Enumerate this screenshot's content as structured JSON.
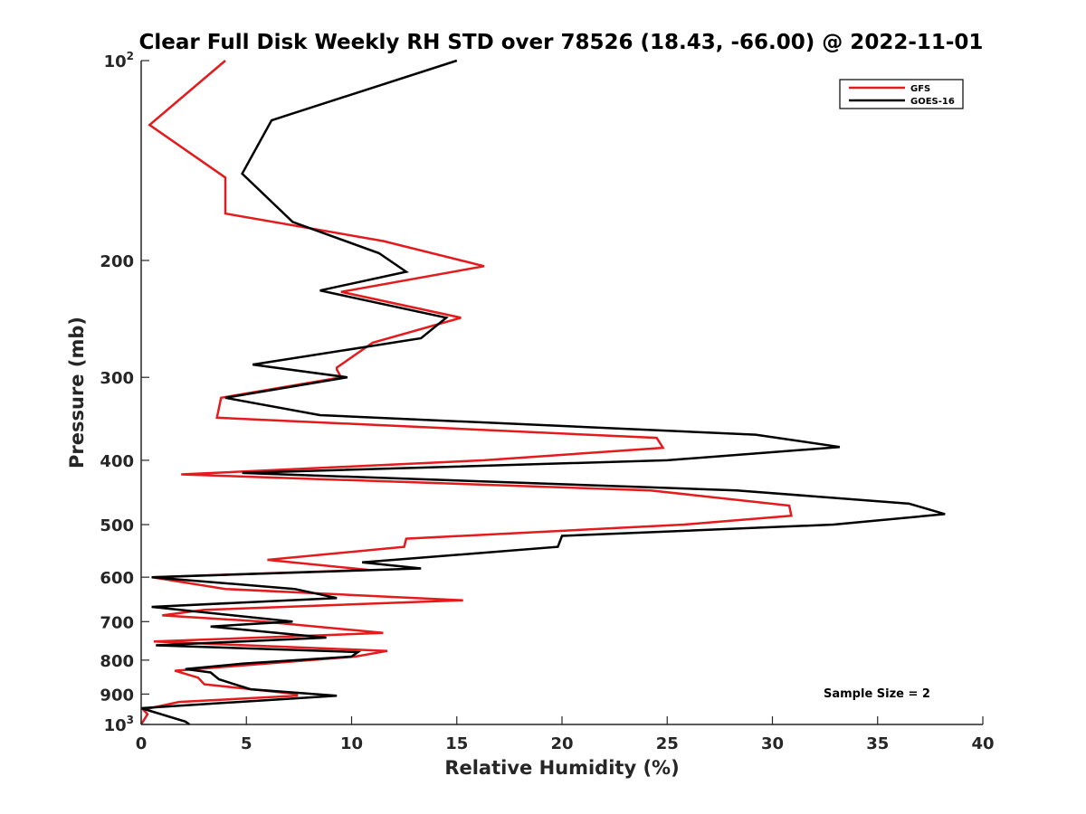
{
  "chart_data": {
    "type": "line",
    "title": "Clear Full Disk Weekly RH STD over 78526 (18.43, -66.00) @ 2022-11-01",
    "xlabel": "Relative Humidity (%)",
    "ylabel": "Pressure (mb)",
    "xlim": [
      0,
      40
    ],
    "ylim": [
      100,
      1000
    ],
    "yscale": "log",
    "y_reversed": true,
    "x_ticks": [
      0,
      5,
      10,
      15,
      20,
      25,
      30,
      35,
      40
    ],
    "x_tick_labels": [
      "0",
      "5",
      "10",
      "15",
      "20",
      "25",
      "30",
      "35",
      "40"
    ],
    "y_ticks": [
      {
        "value": 100,
        "base": "10",
        "exp": "2"
      },
      {
        "value": 200,
        "label": "200"
      },
      {
        "value": 300,
        "label": "300"
      },
      {
        "value": 400,
        "label": "400"
      },
      {
        "value": 500,
        "label": "500"
      },
      {
        "value": 600,
        "label": "600"
      },
      {
        "value": 700,
        "label": "700"
      },
      {
        "value": 800,
        "label": "800"
      },
      {
        "value": 900,
        "label": "900"
      },
      {
        "value": 1000,
        "base": "10",
        "exp": "3"
      }
    ],
    "grid": false,
    "legend_position": "top-right",
    "annotation": "Sample Size = 2",
    "series": [
      {
        "name": "GFS",
        "color": "#e41a1c",
        "points": [
          [
            4.0,
            100
          ],
          [
            0.4,
            125
          ],
          [
            4.0,
            150
          ],
          [
            4.0,
            170
          ],
          [
            11.5,
            187
          ],
          [
            16.3,
            204
          ],
          [
            9.5,
            223
          ],
          [
            15.2,
            244
          ],
          [
            11.0,
            266
          ],
          [
            9.3,
            290
          ],
          [
            9.3,
            292
          ],
          [
            9.5,
            300
          ],
          [
            3.8,
            322
          ],
          [
            3.6,
            345
          ],
          [
            24.5,
            370
          ],
          [
            24.8,
            383
          ],
          [
            16.3,
            400
          ],
          [
            1.9,
            420
          ],
          [
            24.2,
            444
          ],
          [
            30.8,
            468
          ],
          [
            30.9,
            485
          ],
          [
            25.8,
            500
          ],
          [
            12.6,
            525
          ],
          [
            12.5,
            540
          ],
          [
            6.0,
            565
          ],
          [
            10.8,
            585
          ],
          [
            0.5,
            600
          ],
          [
            4.0,
            625
          ],
          [
            15.3,
            650
          ],
          [
            3.0,
            672
          ],
          [
            1.0,
            685
          ],
          [
            5.8,
            700
          ],
          [
            11.5,
            728
          ],
          [
            0.6,
            750
          ],
          [
            11.7,
            775
          ],
          [
            10.2,
            790
          ],
          [
            1.6,
            830
          ],
          [
            2.7,
            850
          ],
          [
            3.0,
            870
          ],
          [
            7.4,
            900
          ],
          [
            7.4,
            905
          ],
          [
            1.8,
            925
          ],
          [
            0.1,
            950
          ],
          [
            0.3,
            965
          ],
          [
            0.0,
            1000
          ]
        ]
      },
      {
        "name": "GOES-16",
        "color": "#000000",
        "points": [
          [
            15.0,
            100
          ],
          [
            6.2,
            123
          ],
          [
            4.8,
            148
          ],
          [
            7.2,
            175
          ],
          [
            11.3,
            195
          ],
          [
            12.6,
            208
          ],
          [
            8.5,
            222
          ],
          [
            14.5,
            244
          ],
          [
            13.3,
            262
          ],
          [
            5.3,
            287
          ],
          [
            9.8,
            300
          ],
          [
            4.0,
            322
          ],
          [
            8.5,
            342
          ],
          [
            29.2,
            366
          ],
          [
            33.2,
            382
          ],
          [
            25.0,
            400
          ],
          [
            4.8,
            418
          ],
          [
            28.3,
            444
          ],
          [
            36.5,
            465
          ],
          [
            38.2,
            482
          ],
          [
            32.9,
            500
          ],
          [
            20.0,
            520
          ],
          [
            19.8,
            540
          ],
          [
            10.5,
            570
          ],
          [
            13.3,
            582
          ],
          [
            0.5,
            600
          ],
          [
            7.3,
            625
          ],
          [
            9.3,
            645
          ],
          [
            0.5,
            665
          ],
          [
            7.2,
            700
          ],
          [
            3.3,
            712
          ],
          [
            8.8,
            740
          ],
          [
            0.7,
            760
          ],
          [
            10.3,
            778
          ],
          [
            10.0,
            790
          ],
          [
            4.8,
            810
          ],
          [
            2.1,
            825
          ],
          [
            3.3,
            835
          ],
          [
            3.7,
            855
          ],
          [
            5.2,
            885
          ],
          [
            9.3,
            905
          ],
          [
            0.0,
            945
          ],
          [
            2.1,
            990
          ],
          [
            2.3,
            1000
          ]
        ]
      }
    ]
  }
}
